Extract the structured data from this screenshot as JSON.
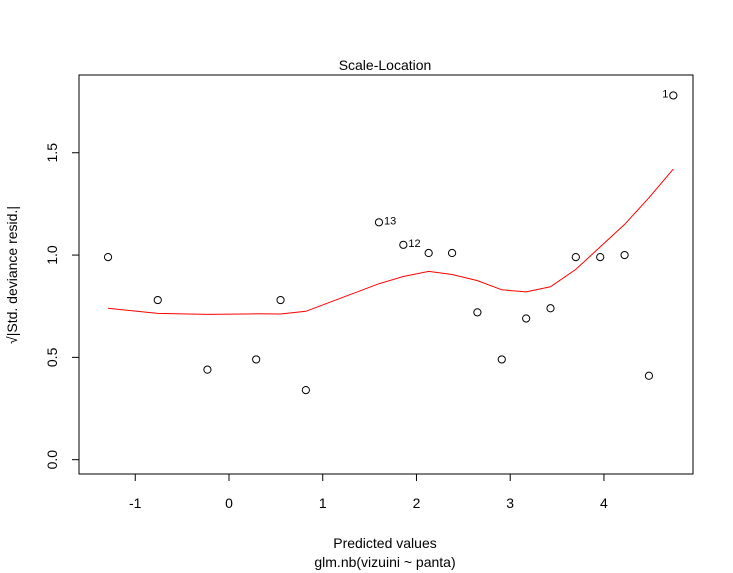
{
  "chart_data": {
    "type": "scatter",
    "title": "Scale-Location",
    "xlabel": "Predicted values",
    "xlabel_sub": "glm.nb(vizuini ~ panta)",
    "ylabel": "√|Std. deviance resid.|",
    "xlim": [
      -1.6,
      4.95
    ],
    "ylim": [
      -0.07,
      1.88
    ],
    "x_ticks": [
      -1,
      0,
      1,
      2,
      3,
      4
    ],
    "x_tick_labels": [
      "-1",
      "0",
      "1",
      "2",
      "3",
      "4"
    ],
    "y_ticks": [
      0.0,
      0.5,
      1.0,
      1.5
    ],
    "y_tick_labels": [
      "0.0",
      "0.5",
      "1.0",
      "1.5"
    ],
    "points": [
      {
        "x": -1.29,
        "y": 0.99
      },
      {
        "x": -0.76,
        "y": 0.78
      },
      {
        "x": -0.23,
        "y": 0.44
      },
      {
        "x": 0.29,
        "y": 0.49
      },
      {
        "x": 0.55,
        "y": 0.78
      },
      {
        "x": 0.82,
        "y": 0.34
      },
      {
        "x": 1.6,
        "y": 1.16,
        "label": "13"
      },
      {
        "x": 1.86,
        "y": 1.05,
        "label": "12"
      },
      {
        "x": 2.13,
        "y": 1.01
      },
      {
        "x": 2.38,
        "y": 1.01
      },
      {
        "x": 2.65,
        "y": 0.72
      },
      {
        "x": 2.91,
        "y": 0.49
      },
      {
        "x": 3.17,
        "y": 0.69
      },
      {
        "x": 3.43,
        "y": 0.74
      },
      {
        "x": 3.7,
        "y": 0.99
      },
      {
        "x": 3.96,
        "y": 0.99
      },
      {
        "x": 4.22,
        "y": 1.0
      },
      {
        "x": 4.48,
        "y": 0.41
      },
      {
        "x": 4.74,
        "y": 1.78,
        "label": "1"
      }
    ],
    "smooth_line": {
      "color": "#ff0000",
      "points": [
        {
          "x": -1.29,
          "y": 0.74
        },
        {
          "x": -0.76,
          "y": 0.715
        },
        {
          "x": -0.23,
          "y": 0.71
        },
        {
          "x": 0.29,
          "y": 0.713
        },
        {
          "x": 0.55,
          "y": 0.712
        },
        {
          "x": 0.82,
          "y": 0.725
        },
        {
          "x": 1.6,
          "y": 0.86
        },
        {
          "x": 1.86,
          "y": 0.895
        },
        {
          "x": 2.13,
          "y": 0.92
        },
        {
          "x": 2.38,
          "y": 0.905
        },
        {
          "x": 2.65,
          "y": 0.875
        },
        {
          "x": 2.91,
          "y": 0.83
        },
        {
          "x": 3.17,
          "y": 0.82
        },
        {
          "x": 3.43,
          "y": 0.845
        },
        {
          "x": 3.7,
          "y": 0.93
        },
        {
          "x": 3.96,
          "y": 1.04
        },
        {
          "x": 4.22,
          "y": 1.15
        },
        {
          "x": 4.48,
          "y": 1.28
        },
        {
          "x": 4.74,
          "y": 1.42
        }
      ]
    },
    "grid": false,
    "point_color": "#000000"
  }
}
